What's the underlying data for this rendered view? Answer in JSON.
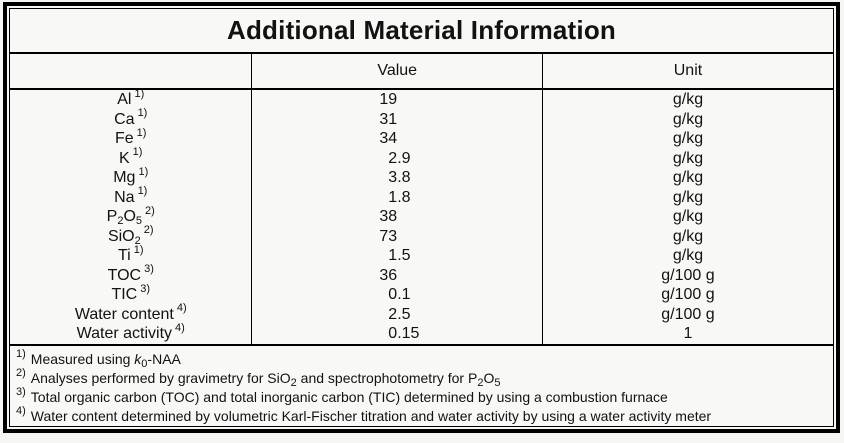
{
  "title": "Additional Material Information",
  "table": {
    "headers": {
      "parameter": "",
      "value": "Value",
      "unit": "Unit"
    },
    "rows": [
      {
        "param": [
          {
            "text": "Al"
          }
        ],
        "marker": "1)",
        "value": "19",
        "unit": "g/kg"
      },
      {
        "param": [
          {
            "text": "Ca"
          }
        ],
        "marker": "1)",
        "value": "31",
        "unit": "g/kg"
      },
      {
        "param": [
          {
            "text": "Fe"
          }
        ],
        "marker": "1)",
        "value": "34",
        "unit": "g/kg"
      },
      {
        "param": [
          {
            "text": "K"
          }
        ],
        "marker": "1)",
        "value": "2.9",
        "unit": "g/kg"
      },
      {
        "param": [
          {
            "text": "Mg"
          }
        ],
        "marker": "1)",
        "value": "3.8",
        "unit": "g/kg"
      },
      {
        "param": [
          {
            "text": "Na"
          }
        ],
        "marker": "1)",
        "value": "1.8",
        "unit": "g/kg"
      },
      {
        "param": [
          {
            "text": "P"
          },
          {
            "text": "2",
            "style": "sub"
          },
          {
            "text": "O"
          },
          {
            "text": "5",
            "style": "sub"
          }
        ],
        "marker": "2)",
        "value": "38",
        "unit": "g/kg"
      },
      {
        "param": [
          {
            "text": "SiO"
          },
          {
            "text": "2",
            "style": "sub"
          }
        ],
        "marker": "2)",
        "value": "73",
        "unit": "g/kg"
      },
      {
        "param": [
          {
            "text": "Ti"
          }
        ],
        "marker": "1)",
        "value": "1.5",
        "unit": "g/kg"
      },
      {
        "param": [
          {
            "text": "TOC"
          }
        ],
        "marker": "3)",
        "value": "36",
        "unit": "g/100 g"
      },
      {
        "param": [
          {
            "text": "TIC"
          }
        ],
        "marker": "3)",
        "value": "0.1",
        "unit": "g/100 g"
      },
      {
        "param": [
          {
            "text": "Water content"
          }
        ],
        "marker": "4)",
        "value": "2.5",
        "unit": "g/100 g"
      },
      {
        "param": [
          {
            "text": "Water activity"
          }
        ],
        "marker": "4)",
        "value": "0.15",
        "unit": "1"
      }
    ]
  },
  "footnotes": [
    {
      "marker": "1)",
      "segments": [
        {
          "text": "Measured using "
        },
        {
          "text": "k",
          "style": "italic"
        },
        {
          "text": "0",
          "style": "sub"
        },
        {
          "text": "-NAA"
        }
      ]
    },
    {
      "marker": "2)",
      "segments": [
        {
          "text": "Analyses performed by gravimetry for SiO"
        },
        {
          "text": "2",
          "style": "sub"
        },
        {
          "text": " and spectrophotometry for P"
        },
        {
          "text": "2",
          "style": "sub"
        },
        {
          "text": "O"
        },
        {
          "text": "5",
          "style": "sub"
        }
      ]
    },
    {
      "marker": "3)",
      "segments": [
        {
          "text": "Total organic carbon (TOC) and total inorganic carbon (TIC) determined by using a combustion furnace"
        }
      ]
    },
    {
      "marker": "4)",
      "segments": [
        {
          "text": "Water content determined by volumetric Karl-Fischer titration and water activity by using a water activity meter"
        }
      ]
    }
  ],
  "colors": {
    "background": "#f6f6f4",
    "border": "#000000",
    "text": "#121212"
  }
}
